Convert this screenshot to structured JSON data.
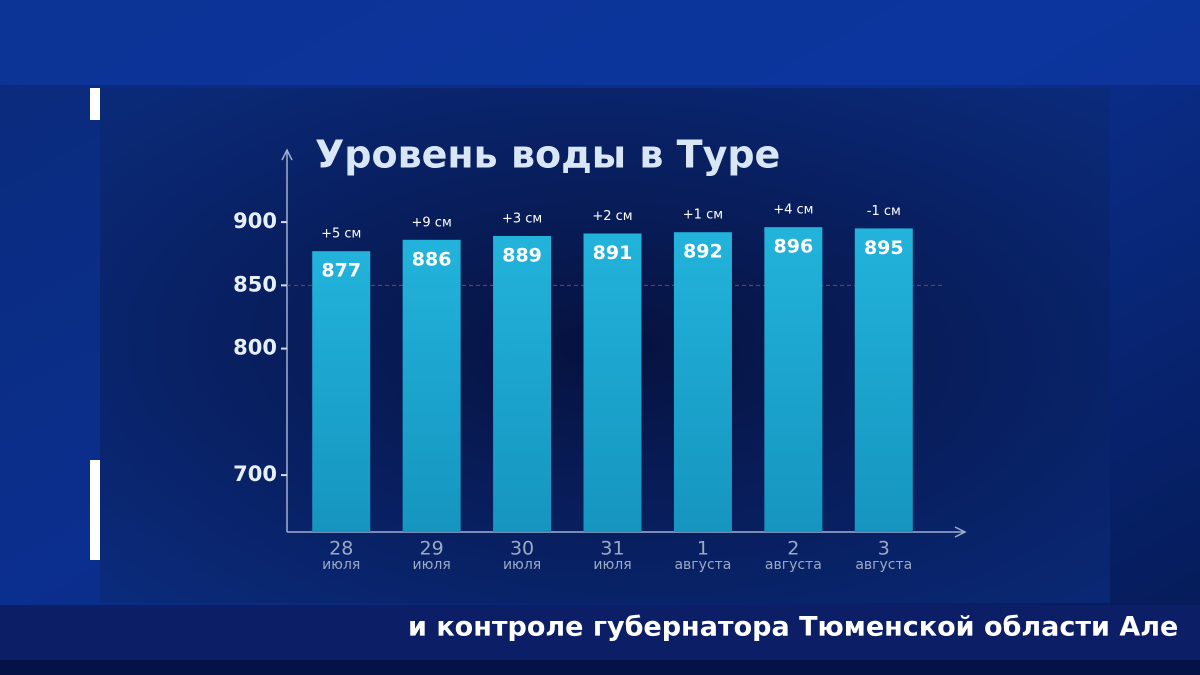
{
  "chart_data": {
    "type": "bar",
    "title": "Уровень воды в Туре",
    "categories": [
      [
        "28",
        "июля"
      ],
      [
        "29",
        "июля"
      ],
      [
        "30",
        "июля"
      ],
      [
        "31",
        "июля"
      ],
      [
        "1",
        "августа"
      ],
      [
        "2",
        "августа"
      ],
      [
        "3",
        "августа"
      ]
    ],
    "values": [
      877,
      886,
      889,
      891,
      892,
      896,
      895
    ],
    "change_labels": [
      "+5 см",
      "+9 см",
      "+3 см",
      "+2 см",
      "+1 см",
      "+4 см",
      "-1 см"
    ],
    "color": "#1ba3cc",
    "ylim": [
      655,
      957
    ],
    "yticks": [
      700,
      800,
      850,
      900
    ],
    "reference_line": 850,
    "reference_color": "#c0282e",
    "ticker": "и контроле губернатора Тюменской области Але"
  }
}
